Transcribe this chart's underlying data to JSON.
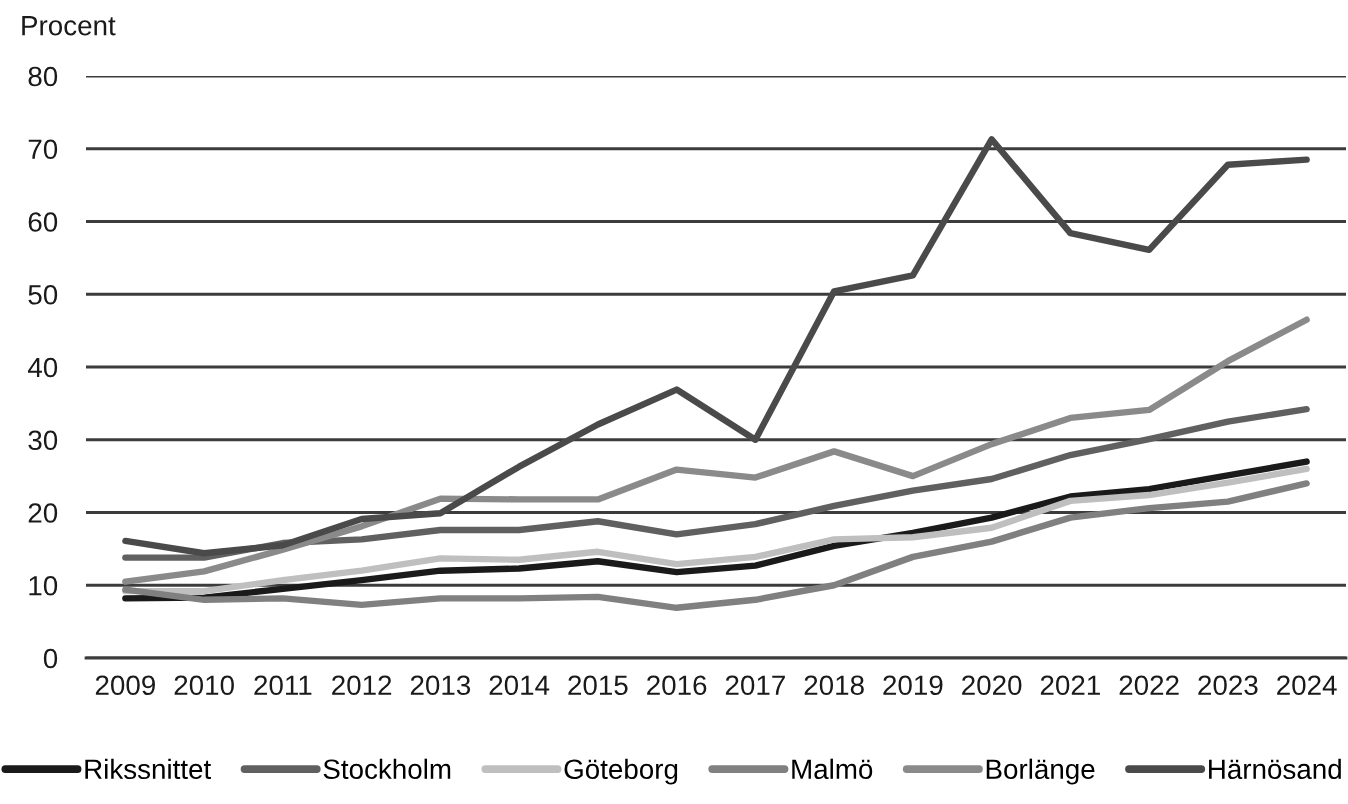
{
  "chart_data": {
    "type": "line",
    "ylabel": "Procent",
    "categories": [
      "2009",
      "2010",
      "2011",
      "2012",
      "2013",
      "2014",
      "2015",
      "2016",
      "2017",
      "2018",
      "2019",
      "2020",
      "2021",
      "2022",
      "2023",
      "2024"
    ],
    "series": [
      {
        "name": "Rikssnittet",
        "color": "#1a1a1a",
        "values": [
          8.2,
          8.3,
          9.5,
          10.7,
          12.0,
          12.3,
          13.3,
          11.8,
          12.7,
          15.4,
          17.2,
          19.3,
          22.2,
          23.2,
          25.1,
          27.0
        ]
      },
      {
        "name": "Stockholm",
        "color": "#606060",
        "values": [
          13.8,
          13.8,
          15.8,
          16.3,
          17.6,
          17.6,
          18.8,
          17.0,
          18.4,
          20.9,
          23.0,
          24.6,
          27.9,
          30.1,
          32.5,
          34.2
        ]
      },
      {
        "name": "Göteborg",
        "color": "#bfbfbf",
        "values": [
          9.2,
          9.2,
          10.7,
          12.0,
          13.7,
          13.5,
          14.6,
          12.9,
          13.9,
          16.3,
          16.6,
          17.9,
          21.6,
          22.4,
          24.1,
          26.0
        ]
      },
      {
        "name": "Malmö",
        "color": "#808080",
        "values": [
          9.4,
          8.0,
          8.2,
          7.3,
          8.2,
          8.2,
          8.4,
          6.9,
          8.0,
          10.0,
          13.9,
          16.0,
          19.3,
          20.6,
          21.5,
          24.0
        ]
      },
      {
        "name": "Borlänge",
        "color": "#8a8a8a",
        "values": [
          10.5,
          11.9,
          14.9,
          18.1,
          21.9,
          21.8,
          21.8,
          25.9,
          24.8,
          28.4,
          25.0,
          29.4,
          33.0,
          34.1,
          40.8,
          46.5
        ]
      },
      {
        "name": "Härnösand",
        "color": "#4a4a4a",
        "values": [
          16.1,
          14.4,
          15.5,
          19.1,
          19.9,
          26.3,
          32.1,
          36.9,
          30.0,
          50.4,
          52.6,
          71.3,
          58.4,
          56.1,
          67.8,
          68.5
        ]
      }
    ],
    "ylim": [
      0,
      80
    ],
    "yticks": [
      0,
      10,
      20,
      30,
      40,
      50,
      60,
      70,
      80
    ],
    "grid": "y",
    "legend": "bottom",
    "marker": "none",
    "line_style": "solid"
  }
}
